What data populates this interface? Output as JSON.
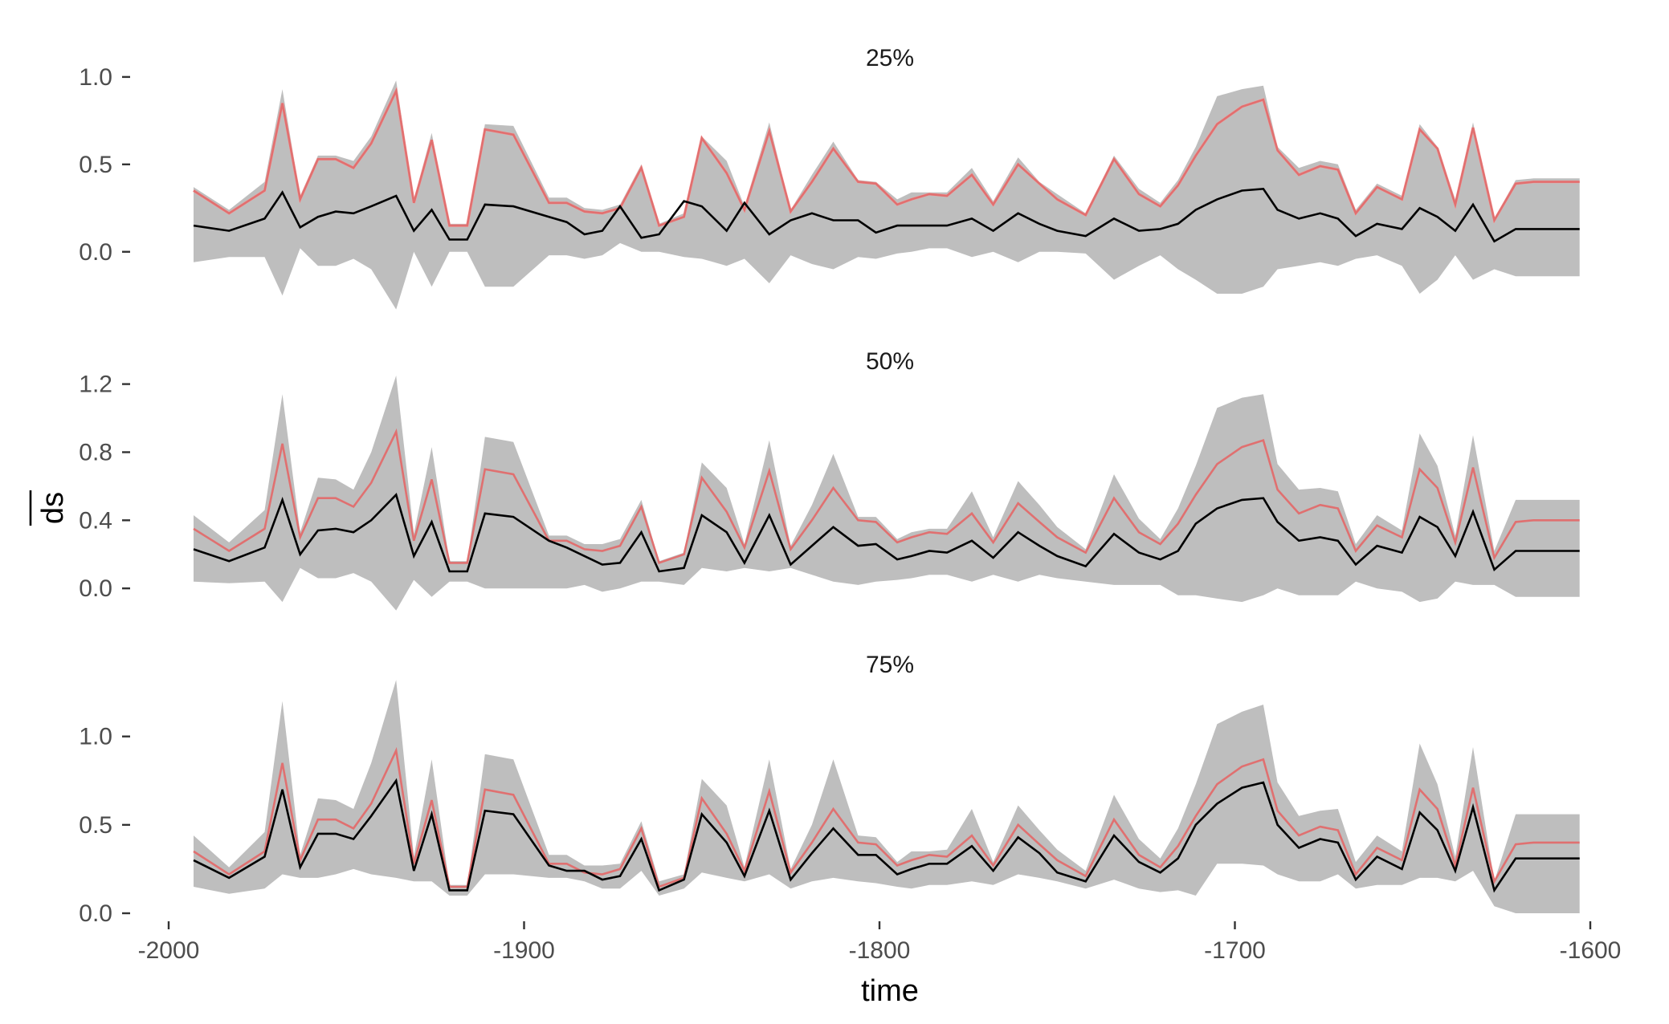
{
  "chart_data": {
    "type": "line",
    "xlabel": "time",
    "ylabel": "ds",
    "xlim": [
      -2000,
      -1600
    ],
    "x_ticks": [
      -2000,
      -1900,
      -1800,
      -1700,
      -1600
    ],
    "x_tick_labels": [
      "-2000",
      "-1900",
      "-1800",
      "-1700",
      "-1600"
    ],
    "colors": {
      "band": "#bebebe",
      "red_line": "#e07070",
      "black_line": "#000000",
      "pink_line": "#ff9999"
    },
    "x": [
      -1993,
      -1983,
      -1973,
      -1968,
      -1963,
      -1958,
      -1953,
      -1948,
      -1943,
      -1936,
      -1931,
      -1926,
      -1921,
      -1916,
      -1911,
      -1903,
      -1893,
      -1888,
      -1883,
      -1878,
      -1873,
      -1867,
      -1862,
      -1855,
      -1850,
      -1843,
      -1838,
      -1831,
      -1825,
      -1819,
      -1813,
      -1806,
      -1801,
      -1795,
      -1791,
      -1786,
      -1781,
      -1774,
      -1768,
      -1761,
      -1755,
      -1750,
      -1742,
      -1734,
      -1727,
      -1721,
      -1716,
      -1711,
      -1705,
      -1698,
      -1692,
      -1688,
      -1682,
      -1676,
      -1671,
      -1666,
      -1660,
      -1653,
      -1648,
      -1643,
      -1638,
      -1633,
      -1627,
      -1621,
      -1616,
      -1610,
      -1603
    ],
    "red_series": [
      0.35,
      0.22,
      0.35,
      0.85,
      0.3,
      0.53,
      0.53,
      0.48,
      0.62,
      0.92,
      0.28,
      0.64,
      0.15,
      0.15,
      0.7,
      0.67,
      0.28,
      0.28,
      0.23,
      0.22,
      0.25,
      0.48,
      0.15,
      0.2,
      0.65,
      0.45,
      0.24,
      0.69,
      0.23,
      0.4,
      0.59,
      0.4,
      0.39,
      0.27,
      0.3,
      0.33,
      0.32,
      0.44,
      0.27,
      0.5,
      0.39,
      0.3,
      0.21,
      0.53,
      0.33,
      0.26,
      0.38,
      0.55,
      0.73,
      0.83,
      0.87,
      0.58,
      0.44,
      0.49,
      0.47,
      0.22,
      0.37,
      0.3,
      0.7,
      0.59,
      0.27,
      0.71,
      0.18,
      0.39,
      0.4,
      0.4,
      0.4
    ],
    "panels": [
      {
        "title": "25%",
        "y_ticks": [
          0,
          0.5,
          1
        ],
        "y_tick_labels": [
          "0.0",
          "0.5",
          "1.0"
        ],
        "ylim": [
          -0.35,
          1.05
        ],
        "black": [
          0.15,
          0.12,
          0.19,
          0.34,
          0.14,
          0.2,
          0.23,
          0.22,
          0.26,
          0.32,
          0.12,
          0.24,
          0.07,
          0.07,
          0.27,
          0.26,
          0.2,
          0.17,
          0.1,
          0.12,
          0.26,
          0.08,
          0.1,
          0.29,
          0.26,
          0.12,
          0.28,
          0.1,
          0.18,
          0.22,
          0.18,
          0.18,
          0.11,
          0.15,
          0.15,
          0.15,
          0.15,
          0.19,
          0.12,
          0.22,
          0.16,
          0.12,
          0.09,
          0.19,
          0.12,
          0.13,
          0.16,
          0.24,
          0.3,
          0.35,
          0.36,
          0.24,
          0.19,
          0.22,
          0.19,
          0.09,
          0.16,
          0.13,
          0.25,
          0.2,
          0.12,
          0.27,
          0.06,
          0.13,
          0.13,
          0.13,
          0.13
        ],
        "upper": [
          0.37,
          0.24,
          0.4,
          0.93,
          0.32,
          0.55,
          0.55,
          0.52,
          0.66,
          0.98,
          0.3,
          0.68,
          0.16,
          0.16,
          0.73,
          0.72,
          0.31,
          0.31,
          0.25,
          0.24,
          0.27,
          0.5,
          0.16,
          0.22,
          0.66,
          0.52,
          0.26,
          0.74,
          0.24,
          0.44,
          0.63,
          0.41,
          0.4,
          0.3,
          0.34,
          0.34,
          0.34,
          0.48,
          0.29,
          0.54,
          0.4,
          0.33,
          0.22,
          0.55,
          0.36,
          0.28,
          0.41,
          0.6,
          0.89,
          0.93,
          0.95,
          0.6,
          0.48,
          0.52,
          0.5,
          0.24,
          0.39,
          0.32,
          0.73,
          0.6,
          0.3,
          0.74,
          0.19,
          0.41,
          0.42,
          0.42,
          0.42
        ],
        "lower": [
          -0.06,
          -0.03,
          -0.03,
          -0.25,
          0.02,
          -0.08,
          -0.08,
          -0.04,
          -0.1,
          -0.33,
          0.0,
          -0.2,
          0.0,
          0.0,
          -0.2,
          -0.2,
          -0.02,
          -0.02,
          -0.04,
          -0.02,
          0.05,
          0.0,
          0.0,
          -0.03,
          -0.04,
          -0.08,
          -0.04,
          -0.18,
          -0.02,
          -0.07,
          -0.1,
          -0.03,
          -0.04,
          -0.01,
          0.0,
          0.02,
          0.02,
          -0.03,
          0.0,
          -0.06,
          0.0,
          0.0,
          -0.01,
          -0.16,
          -0.08,
          -0.02,
          -0.1,
          -0.16,
          -0.24,
          -0.24,
          -0.2,
          -0.1,
          -0.08,
          -0.06,
          -0.08,
          -0.04,
          -0.02,
          -0.08,
          -0.24,
          -0.16,
          -0.02,
          -0.16,
          -0.1,
          -0.14,
          -0.14,
          -0.14,
          -0.14
        ]
      },
      {
        "title": "50%",
        "y_ticks": [
          0,
          0.4,
          0.8,
          1.2
        ],
        "y_tick_labels": [
          "0.0",
          "0.4",
          "0.8",
          "1.2"
        ],
        "ylim": [
          -0.15,
          1.25
        ],
        "black": [
          0.23,
          0.16,
          0.24,
          0.52,
          0.2,
          0.34,
          0.35,
          0.33,
          0.4,
          0.55,
          0.19,
          0.39,
          0.1,
          0.1,
          0.44,
          0.42,
          0.28,
          0.24,
          0.19,
          0.14,
          0.15,
          0.33,
          0.1,
          0.12,
          0.43,
          0.33,
          0.15,
          0.43,
          0.14,
          0.25,
          0.36,
          0.25,
          0.26,
          0.17,
          0.19,
          0.22,
          0.21,
          0.28,
          0.18,
          0.33,
          0.25,
          0.19,
          0.13,
          0.32,
          0.21,
          0.17,
          0.22,
          0.38,
          0.47,
          0.52,
          0.53,
          0.39,
          0.28,
          0.3,
          0.28,
          0.14,
          0.25,
          0.21,
          0.42,
          0.36,
          0.19,
          0.45,
          0.11,
          0.22,
          0.22,
          0.22,
          0.22
        ],
        "upper": [
          0.43,
          0.27,
          0.46,
          1.14,
          0.33,
          0.65,
          0.64,
          0.58,
          0.8,
          1.25,
          0.32,
          0.83,
          0.16,
          0.16,
          0.89,
          0.86,
          0.31,
          0.31,
          0.26,
          0.26,
          0.29,
          0.52,
          0.16,
          0.21,
          0.74,
          0.59,
          0.26,
          0.87,
          0.25,
          0.49,
          0.79,
          0.42,
          0.42,
          0.29,
          0.33,
          0.35,
          0.35,
          0.57,
          0.3,
          0.63,
          0.49,
          0.36,
          0.23,
          0.67,
          0.41,
          0.29,
          0.47,
          0.72,
          1.06,
          1.12,
          1.14,
          0.73,
          0.58,
          0.59,
          0.57,
          0.26,
          0.43,
          0.34,
          0.91,
          0.72,
          0.31,
          0.9,
          0.22,
          0.52,
          0.52,
          0.52,
          0.52
        ],
        "lower": [
          0.04,
          0.03,
          0.04,
          -0.08,
          0.12,
          0.06,
          0.06,
          0.09,
          0.04,
          -0.13,
          0.05,
          -0.05,
          0.04,
          0.04,
          0.0,
          0.0,
          0.0,
          0.0,
          0.02,
          -0.02,
          0.0,
          0.04,
          0.04,
          0.02,
          0.12,
          0.1,
          0.12,
          0.1,
          0.12,
          0.08,
          0.04,
          0.02,
          0.04,
          0.05,
          0.06,
          0.08,
          0.08,
          0.04,
          0.08,
          0.04,
          0.08,
          0.06,
          0.04,
          0.02,
          0.02,
          0.02,
          -0.04,
          -0.04,
          -0.06,
          -0.08,
          -0.04,
          0.0,
          -0.04,
          -0.04,
          -0.04,
          0.04,
          0.0,
          -0.02,
          -0.08,
          -0.06,
          0.04,
          0.02,
          0.02,
          -0.05,
          -0.05,
          -0.05,
          -0.05
        ]
      },
      {
        "title": "75%",
        "y_ticks": [
          0,
          0.5,
          1
        ],
        "y_tick_labels": [
          "0.0",
          "0.5",
          "1.0"
        ],
        "ylim": [
          0,
          1.33
        ],
        "black": [
          0.3,
          0.2,
          0.32,
          0.7,
          0.26,
          0.45,
          0.45,
          0.42,
          0.55,
          0.75,
          0.24,
          0.56,
          0.13,
          0.13,
          0.58,
          0.56,
          0.27,
          0.24,
          0.24,
          0.19,
          0.21,
          0.42,
          0.13,
          0.19,
          0.56,
          0.4,
          0.21,
          0.58,
          0.19,
          0.34,
          0.48,
          0.33,
          0.33,
          0.22,
          0.25,
          0.28,
          0.28,
          0.38,
          0.24,
          0.43,
          0.34,
          0.23,
          0.18,
          0.44,
          0.29,
          0.23,
          0.31,
          0.5,
          0.62,
          0.71,
          0.74,
          0.5,
          0.37,
          0.42,
          0.4,
          0.19,
          0.32,
          0.25,
          0.57,
          0.47,
          0.24,
          0.6,
          0.13,
          0.31,
          0.31,
          0.31,
          0.31
        ],
        "upper": [
          0.44,
          0.26,
          0.46,
          1.2,
          0.33,
          0.65,
          0.64,
          0.59,
          0.85,
          1.32,
          0.32,
          0.87,
          0.16,
          0.16,
          0.9,
          0.87,
          0.33,
          0.33,
          0.27,
          0.27,
          0.28,
          0.52,
          0.18,
          0.22,
          0.76,
          0.61,
          0.26,
          0.87,
          0.25,
          0.5,
          0.87,
          0.44,
          0.43,
          0.29,
          0.35,
          0.35,
          0.36,
          0.59,
          0.29,
          0.61,
          0.47,
          0.36,
          0.24,
          0.67,
          0.42,
          0.31,
          0.48,
          0.73,
          1.07,
          1.14,
          1.18,
          0.74,
          0.55,
          0.58,
          0.59,
          0.29,
          0.44,
          0.35,
          0.96,
          0.73,
          0.32,
          0.94,
          0.18,
          0.56,
          0.56,
          0.56,
          0.56
        ],
        "lower": [
          0.15,
          0.11,
          0.14,
          0.22,
          0.2,
          0.2,
          0.22,
          0.25,
          0.22,
          0.2,
          0.18,
          0.18,
          0.1,
          0.1,
          0.22,
          0.22,
          0.2,
          0.2,
          0.18,
          0.14,
          0.14,
          0.24,
          0.1,
          0.14,
          0.23,
          0.2,
          0.18,
          0.22,
          0.14,
          0.18,
          0.2,
          0.18,
          0.17,
          0.15,
          0.14,
          0.16,
          0.16,
          0.18,
          0.16,
          0.22,
          0.2,
          0.18,
          0.14,
          0.19,
          0.14,
          0.12,
          0.13,
          0.1,
          0.28,
          0.28,
          0.27,
          0.22,
          0.18,
          0.18,
          0.22,
          0.14,
          0.16,
          0.16,
          0.2,
          0.2,
          0.18,
          0.24,
          0.04,
          0.0,
          0.0,
          0.0,
          0.0
        ]
      }
    ]
  }
}
